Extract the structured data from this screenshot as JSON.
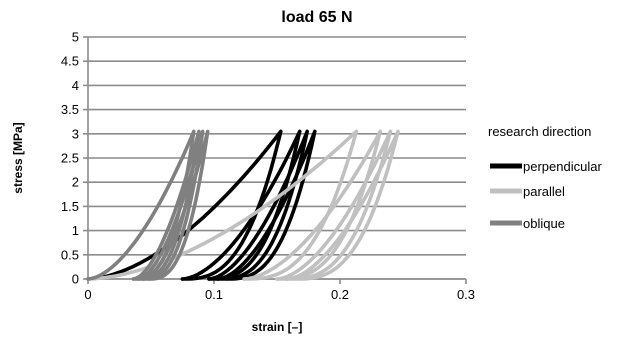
{
  "chart_data": {
    "type": "line",
    "title": "load 65 N",
    "xlabel": "strain [–]",
    "ylabel": "stress [MPa]",
    "xlim": [
      0,
      0.3
    ],
    "ylim": [
      0,
      5
    ],
    "xticks": [
      "0",
      "0.1",
      "0.2",
      "0.3"
    ],
    "yticks": [
      "0",
      "0.5",
      "1",
      "1.5",
      "2",
      "2.5",
      "3",
      "3.5",
      "4",
      "4.5",
      "5"
    ],
    "grid": "horizontal",
    "legend_title": "research direction",
    "legend_position": "right",
    "series": [
      {
        "name": "perpendicular",
        "color": "#000000",
        "loops": [
          {
            "start": [
              0.0,
              0.0
            ],
            "peak": [
              0.153,
              3.05
            ],
            "end": [
              0.075,
              0.0
            ]
          },
          {
            "start": [
              0.075,
              0.0
            ],
            "peak": [
              0.168,
              3.05
            ],
            "end": [
              0.096,
              0.0
            ]
          },
          {
            "start": [
              0.096,
              0.0
            ],
            "peak": [
              0.174,
              3.05
            ],
            "end": [
              0.103,
              0.0
            ]
          },
          {
            "start": [
              0.103,
              0.0
            ],
            "peak": [
              0.18,
              3.05
            ],
            "end": [
              0.11,
              0.0
            ]
          }
        ]
      },
      {
        "name": "parallel",
        "color": "#c0c0c0",
        "loops": [
          {
            "start": [
              0.0,
              0.0
            ],
            "peak": [
              0.213,
              3.05
            ],
            "end": [
              0.124,
              0.0
            ]
          },
          {
            "start": [
              0.124,
              0.0
            ],
            "peak": [
              0.232,
              3.05
            ],
            "end": [
              0.15,
              0.0
            ]
          },
          {
            "start": [
              0.15,
              0.0
            ],
            "peak": [
              0.24,
              3.05
            ],
            "end": [
              0.158,
              0.0
            ]
          },
          {
            "start": [
              0.158,
              0.0
            ],
            "peak": [
              0.246,
              3.05
            ],
            "end": [
              0.165,
              0.0
            ]
          }
        ]
      },
      {
        "name": "oblique",
        "color": "#808080",
        "loops": [
          {
            "start": [
              0.0,
              0.0
            ],
            "peak": [
              0.084,
              3.05
            ],
            "end": [
              0.036,
              0.0
            ]
          },
          {
            "start": [
              0.036,
              0.0
            ],
            "peak": [
              0.088,
              3.05
            ],
            "end": [
              0.04,
              0.0
            ]
          },
          {
            "start": [
              0.04,
              0.0
            ],
            "peak": [
              0.091,
              3.05
            ],
            "end": [
              0.044,
              0.0
            ]
          },
          {
            "start": [
              0.044,
              0.0
            ],
            "peak": [
              0.095,
              3.05
            ],
            "end": [
              0.048,
              0.0
            ]
          }
        ]
      }
    ]
  }
}
